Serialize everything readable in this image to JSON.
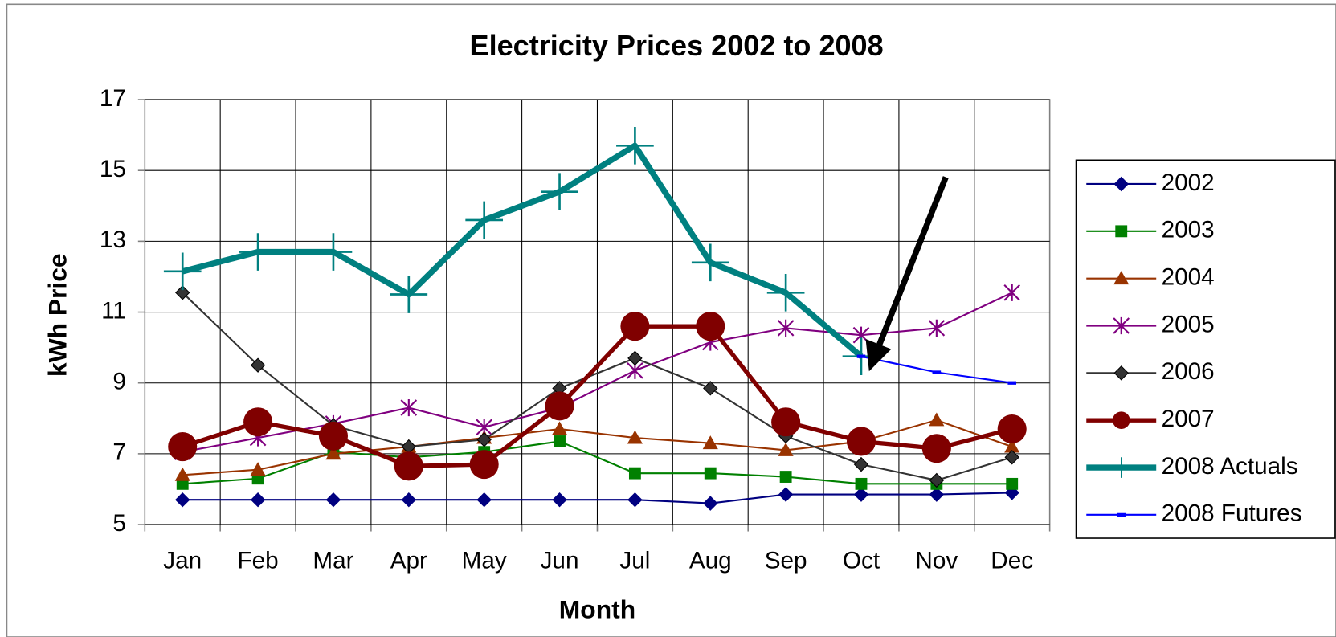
{
  "chart_data": {
    "type": "line",
    "title": "Electricity Prices 2002 to 2008",
    "x_label": "Month",
    "y_label": "kWh Price",
    "categories": [
      "Jan",
      "Feb",
      "Mar",
      "Apr",
      "May",
      "Jun",
      "Jul",
      "Aug",
      "Sep",
      "Oct",
      "Nov",
      "Dec"
    ],
    "ylim": [
      5,
      17
    ],
    "yticks": [
      5,
      7,
      9,
      11,
      13,
      15,
      17
    ],
    "grid": true,
    "legend": "right",
    "series": [
      {
        "name": "2002",
        "color": "#000080",
        "marker": "diamond",
        "line_width": 2,
        "values": [
          5.7,
          5.7,
          5.7,
          5.7,
          5.7,
          5.7,
          5.7,
          5.6,
          5.85,
          5.85,
          5.85,
          5.9
        ]
      },
      {
        "name": "2003",
        "color": "#008000",
        "marker": "square",
        "line_width": 2,
        "values": [
          6.15,
          6.3,
          7.05,
          6.9,
          7.05,
          7.35,
          6.45,
          6.45,
          6.35,
          6.15,
          6.15,
          6.15
        ]
      },
      {
        "name": "2004",
        "color": "#993300",
        "marker": "triangle",
        "line_width": 2,
        "values": [
          6.4,
          6.55,
          7.0,
          7.2,
          7.45,
          7.7,
          7.45,
          7.3,
          7.1,
          7.35,
          7.95,
          7.2
        ]
      },
      {
        "name": "2005",
        "color": "#800080",
        "marker": "star",
        "line_width": 2,
        "values": [
          7.05,
          7.45,
          7.85,
          8.3,
          7.75,
          8.3,
          9.35,
          10.15,
          10.55,
          10.35,
          10.55,
          11.55
        ]
      },
      {
        "name": "2006",
        "color": "#333333",
        "marker": "diamond",
        "line_width": 2,
        "values": [
          11.55,
          9.5,
          7.8,
          7.2,
          7.4,
          8.85,
          9.7,
          8.85,
          7.5,
          6.7,
          6.25,
          6.9
        ]
      },
      {
        "name": "2007",
        "color": "#800000",
        "marker": "circle",
        "line_width": 5,
        "values": [
          7.2,
          7.9,
          7.5,
          6.65,
          6.7,
          8.35,
          10.6,
          10.6,
          7.9,
          7.35,
          7.15,
          7.7
        ]
      },
      {
        "name": "2008 Actuals",
        "color": "#008080",
        "marker": "plus",
        "line_width": 7,
        "values": [
          12.15,
          12.7,
          12.7,
          11.5,
          13.6,
          14.4,
          15.7,
          12.4,
          11.55,
          9.75,
          null,
          null
        ]
      },
      {
        "name": "2008 Futures",
        "color": "#0000ff",
        "marker": "dash",
        "line_width": 2,
        "values": [
          null,
          null,
          null,
          null,
          null,
          null,
          null,
          null,
          null,
          9.75,
          9.3,
          9.0
        ]
      }
    ]
  }
}
